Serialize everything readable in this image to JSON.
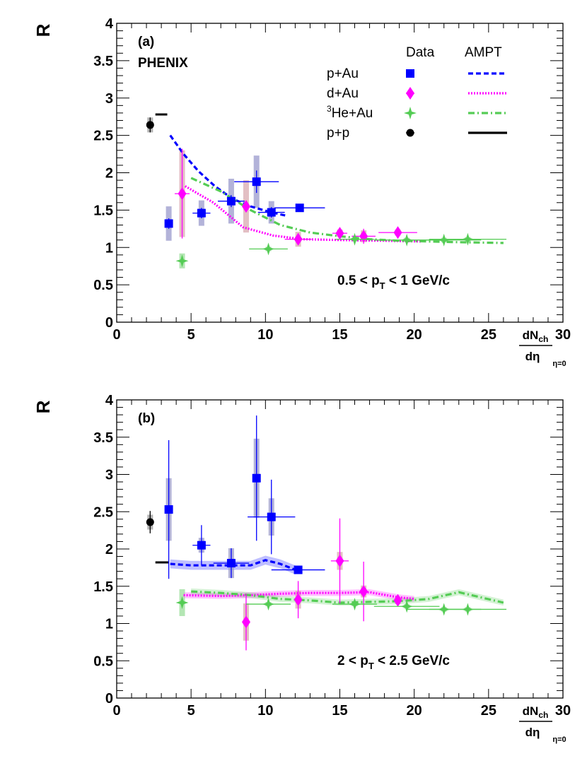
{
  "chart_data": [
    {
      "type": "scatter",
      "panel_label": "(a)",
      "experiment_label": "PHENIX",
      "ylabel": "R",
      "xlabel_num_main": "dN",
      "xlabel_num_sub": "ch",
      "xlabel_den": "dη",
      "xlabel_sub": "η=0",
      "xlim": [
        0,
        30
      ],
      "ylim": [
        0,
        4
      ],
      "xticks": [
        0,
        5,
        10,
        15,
        20,
        25,
        30
      ],
      "yticks": [
        0,
        0.5,
        1,
        1.5,
        2,
        2.5,
        3,
        3.5,
        4
      ],
      "xtick_labels": [
        "0",
        "5",
        "10",
        "15",
        "20",
        "25",
        "30"
      ],
      "ytick_labels": [
        "0",
        "0.5",
        "1",
        "1.5",
        "2",
        "2.5",
        "3",
        "3.5",
        "4"
      ],
      "annotation": {
        "pre": "0.5 < p",
        "sub": "T",
        "post": " < 1 GeV/c"
      },
      "legend": {
        "col_data": "Data",
        "col_ampt": "AMPT",
        "entries": [
          {
            "label": "p+Au",
            "sup": "",
            "color": "#0000ff",
            "marker": "square",
            "style": "dashed"
          },
          {
            "label": "d+Au",
            "sup": "",
            "color": "#ff00ff",
            "marker": "diamond",
            "style": "dotted"
          },
          {
            "label": "He+Au",
            "sup": "3",
            "color": "#55cc55",
            "marker": "star",
            "style": "dashdot"
          },
          {
            "label": "p+p",
            "sup": "",
            "color": "#000000",
            "marker": "circle",
            "style": "solid"
          }
        ]
      },
      "series": [
        {
          "system": "p+Au",
          "color": "#0000ff",
          "marker": "square",
          "sys_color": "#9999cc",
          "points": [
            {
              "x": 3.5,
              "y": 1.32,
              "xerr": 0,
              "yerr": 0.07,
              "sys": 0.23
            },
            {
              "x": 5.7,
              "y": 1.46,
              "xerr": 0.6,
              "yerr": 0.07,
              "sys": 0.17
            },
            {
              "x": 7.7,
              "y": 1.62,
              "xerr": 0.9,
              "yerr": 0.08,
              "sys": 0.3
            },
            {
              "x": 9.4,
              "y": 1.88,
              "xerr": 1.5,
              "yerr": 0.15,
              "sys": 0.35
            },
            {
              "x": 10.4,
              "y": 1.47,
              "xerr": 0.9,
              "yerr": 0.07,
              "sys": 0.15
            },
            {
              "x": 12.3,
              "y": 1.53,
              "xerr": 1.7,
              "yerr": 0.04,
              "sys": 0.05
            }
          ]
        },
        {
          "system": "d+Au",
          "color": "#ff00ff",
          "marker": "diamond",
          "sys_color": "#d9a9b0",
          "points": [
            {
              "x": 4.4,
              "y": 1.72,
              "xerr": 0.5,
              "yerr": 0.6,
              "sys": 0.58
            },
            {
              "x": 8.7,
              "y": 1.55,
              "xerr": 0,
              "yerr": 0.05,
              "sys": 0.35
            },
            {
              "x": 12.2,
              "y": 1.11,
              "xerr": 0.9,
              "yerr": 0.08,
              "sys": 0.1
            },
            {
              "x": 15.0,
              "y": 1.19,
              "xerr": 0.5,
              "yerr": 0.05,
              "sys": 0.05
            },
            {
              "x": 16.6,
              "y": 1.15,
              "xerr": 0.8,
              "yerr": 0.1,
              "sys": 0.08
            },
            {
              "x": 18.9,
              "y": 1.2,
              "xerr": 1.3,
              "yerr": 0.04,
              "sys": 0.04
            }
          ]
        },
        {
          "system": "3He+Au",
          "color": "#55cc55",
          "marker": "star",
          "sys_color": "#99dd99",
          "points": [
            {
              "x": 4.4,
              "y": 0.82,
              "xerr": 0,
              "yerr": 0.06,
              "sys": 0.1
            },
            {
              "x": 10.2,
              "y": 0.98,
              "xerr": 1.3,
              "yerr": 0.03,
              "sys": 0.03
            },
            {
              "x": 16.0,
              "y": 1.11,
              "xerr": 1.3,
              "yerr": 0.03,
              "sys": 0.03
            },
            {
              "x": 19.5,
              "y": 1.1,
              "xerr": 2.2,
              "yerr": 0.03,
              "sys": 0.03
            },
            {
              "x": 22.0,
              "y": 1.1,
              "xerr": 2.5,
              "yerr": 0.03,
              "sys": 0.03
            },
            {
              "x": 23.6,
              "y": 1.11,
              "xerr": 2.6,
              "yerr": 0.03,
              "sys": 0.03
            }
          ]
        },
        {
          "system": "p+p",
          "color": "#000000",
          "marker": "circle",
          "sys_color": "#999999",
          "points": [
            {
              "x": 2.25,
              "y": 2.64,
              "xerr": 0,
              "yerr": 0.1,
              "sys": 0.1
            }
          ]
        }
      ],
      "ampt": [
        {
          "system": "p+Au",
          "color": "#0000ff",
          "style": "dashed",
          "x": [
            3.6,
            4.5,
            5.5,
            6.6,
            7.8,
            9.0,
            10.2,
            11.5
          ],
          "y": [
            2.5,
            2.25,
            2.02,
            1.82,
            1.65,
            1.55,
            1.48,
            1.42
          ],
          "band": 0
        },
        {
          "system": "d+Au",
          "color": "#ff00ff",
          "style": "dotted",
          "x": [
            4.6,
            6.5,
            8.5,
            10.5,
            12.5,
            15,
            18,
            20.5
          ],
          "y": [
            1.82,
            1.6,
            1.27,
            1.16,
            1.11,
            1.1,
            1.09,
            1.08
          ],
          "band": 0
        },
        {
          "system": "3He+Au",
          "color": "#55cc55",
          "style": "dashdot",
          "x": [
            5,
            7,
            9,
            11,
            13,
            15,
            17,
            19,
            21,
            23,
            26
          ],
          "y": [
            1.93,
            1.75,
            1.5,
            1.3,
            1.2,
            1.15,
            1.11,
            1.09,
            1.08,
            1.07,
            1.06
          ],
          "band": 0
        },
        {
          "system": "p+p",
          "color": "#000000",
          "style": "solid",
          "x": [
            2.6,
            3.4
          ],
          "y": [
            2.78,
            2.78
          ],
          "band": 0
        }
      ]
    },
    {
      "type": "scatter",
      "panel_label": "(b)",
      "ylabel": "R",
      "xlabel_num_main": "dN",
      "xlabel_num_sub": "ch",
      "xlabel_den": "dη",
      "xlabel_sub": "η=0",
      "xlim": [
        0,
        30
      ],
      "ylim": [
        0,
        4
      ],
      "xticks": [
        0,
        5,
        10,
        15,
        20,
        25,
        30
      ],
      "yticks": [
        0,
        0.5,
        1,
        1.5,
        2,
        2.5,
        3,
        3.5,
        4
      ],
      "xtick_labels": [
        "0",
        "5",
        "10",
        "15",
        "20",
        "25",
        "30"
      ],
      "ytick_labels": [
        "0",
        "0.5",
        "1",
        "1.5",
        "2",
        "2.5",
        "3",
        "3.5",
        "4"
      ],
      "annotation": {
        "pre": "2 < p",
        "sub": "T",
        "post": " < 2.5 GeV/c"
      },
      "series": [
        {
          "system": "p+Au",
          "color": "#0000ff",
          "marker": "square",
          "sys_color": "#9999cc",
          "points": [
            {
              "x": 3.5,
              "y": 2.53,
              "xerr": 0,
              "yerr": 0.93,
              "sys": 0.42
            },
            {
              "x": 5.7,
              "y": 2.05,
              "xerr": 0.6,
              "yerr": 0.27,
              "sys": 0.1
            },
            {
              "x": 7.7,
              "y": 1.81,
              "xerr": 1.2,
              "yerr": 0.2,
              "sys": 0.2
            },
            {
              "x": 9.4,
              "y": 2.95,
              "xerr": 0,
              "yerr": 0.84,
              "sys": 0.53
            },
            {
              "x": 10.4,
              "y": 2.43,
              "xerr": 1.6,
              "yerr": 0.5,
              "sys": 0.25
            },
            {
              "x": 12.2,
              "y": 1.72,
              "xerr": 1.8,
              "yerr": 0.05,
              "sys": 0.05
            }
          ]
        },
        {
          "system": "d+Au",
          "color": "#ff00ff",
          "marker": "diamond",
          "sys_color": "#d9a9b0",
          "points": [
            {
              "x": 8.7,
              "y": 1.02,
              "xerr": 0,
              "yerr": 0.38,
              "sys": 0.25
            },
            {
              "x": 12.2,
              "y": 1.32,
              "xerr": 0,
              "yerr": 0.25,
              "sys": 0.12
            },
            {
              "x": 15.0,
              "y": 1.84,
              "xerr": 0.6,
              "yerr": 0.57,
              "sys": 0.12
            },
            {
              "x": 16.6,
              "y": 1.43,
              "xerr": 0,
              "yerr": 0.4,
              "sys": 0.08
            },
            {
              "x": 18.9,
              "y": 1.31,
              "xerr": 0,
              "yerr": 0.07,
              "sys": 0.05
            }
          ]
        },
        {
          "system": "3He+Au",
          "color": "#55cc55",
          "marker": "star",
          "sys_color": "#99dd99",
          "points": [
            {
              "x": 4.4,
              "y": 1.28,
              "xerr": 0,
              "yerr": 0.05,
              "sys": 0.18
            },
            {
              "x": 10.2,
              "y": 1.26,
              "xerr": 1.5,
              "yerr": 0.03,
              "sys": 0.03
            },
            {
              "x": 16.0,
              "y": 1.26,
              "xerr": 1.5,
              "yerr": 0.03,
              "sys": 0.03
            },
            {
              "x": 19.5,
              "y": 1.23,
              "xerr": 2.2,
              "yerr": 0.03,
              "sys": 0.03
            },
            {
              "x": 22.0,
              "y": 1.19,
              "xerr": 2.5,
              "yerr": 0.03,
              "sys": 0.03
            },
            {
              "x": 23.6,
              "y": 1.19,
              "xerr": 2.6,
              "yerr": 0.03,
              "sys": 0.03
            }
          ]
        },
        {
          "system": "p+p",
          "color": "#000000",
          "marker": "circle",
          "sys_color": "#999999",
          "points": [
            {
              "x": 2.25,
              "y": 2.36,
              "xerr": 0,
              "yerr": 0.15,
              "sys": 0.1
            }
          ]
        }
      ],
      "ampt": [
        {
          "system": "p+Au",
          "color": "#0000ff",
          "style": "dashed",
          "x": [
            3.6,
            5,
            7,
            9,
            10,
            11,
            12
          ],
          "y": [
            1.8,
            1.78,
            1.78,
            1.78,
            1.85,
            1.8,
            1.72
          ],
          "band": 0.06
        },
        {
          "system": "d+Au",
          "color": "#ff00ff",
          "style": "dotted",
          "x": [
            4.5,
            7,
            9,
            11,
            13,
            15,
            17,
            19,
            20
          ],
          "y": [
            1.38,
            1.37,
            1.38,
            1.4,
            1.41,
            1.41,
            1.42,
            1.35,
            1.33
          ],
          "band": 0.04
        },
        {
          "system": "3He+Au",
          "color": "#55cc55",
          "style": "dashdot",
          "x": [
            5,
            7,
            9,
            11,
            13,
            15,
            17,
            19,
            21,
            23,
            26
          ],
          "y": [
            1.43,
            1.41,
            1.38,
            1.33,
            1.31,
            1.28,
            1.29,
            1.3,
            1.33,
            1.42,
            1.28
          ],
          "band": 0.04
        },
        {
          "system": "p+p",
          "color": "#000000",
          "style": "solid",
          "x": [
            2.6,
            3.5
          ],
          "y": [
            1.82,
            1.82
          ],
          "band": 0
        }
      ]
    }
  ]
}
